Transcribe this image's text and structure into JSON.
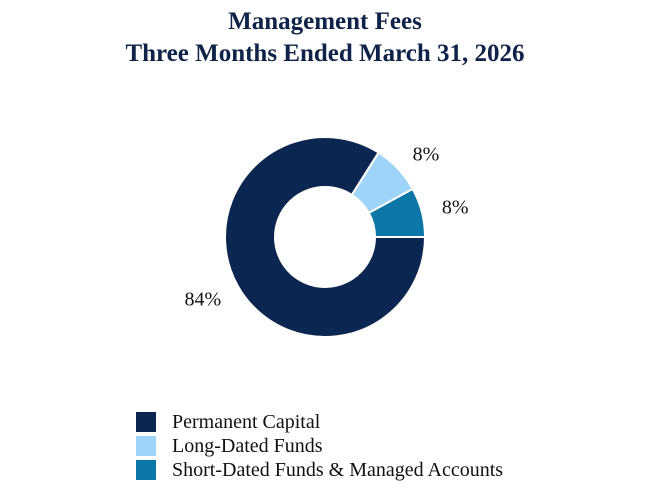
{
  "header": {
    "title_line1": "Management Fees",
    "title_line2": "Three Months Ended March 31, 2026"
  },
  "chart_data": {
    "type": "pie",
    "style": "donut",
    "title": "Management Fees Three Months Ended March 31, 2026",
    "categories": [
      "Permanent Capital",
      "Long-Dated Funds",
      "Short-Dated Funds & Managed Accounts"
    ],
    "values": [
      84,
      8,
      8
    ],
    "value_labels": [
      "84%",
      "8%",
      "8%"
    ],
    "colors": [
      "#0b2650",
      "#9dd4f7",
      "#0a77a7"
    ],
    "legend": "bottom"
  }
}
